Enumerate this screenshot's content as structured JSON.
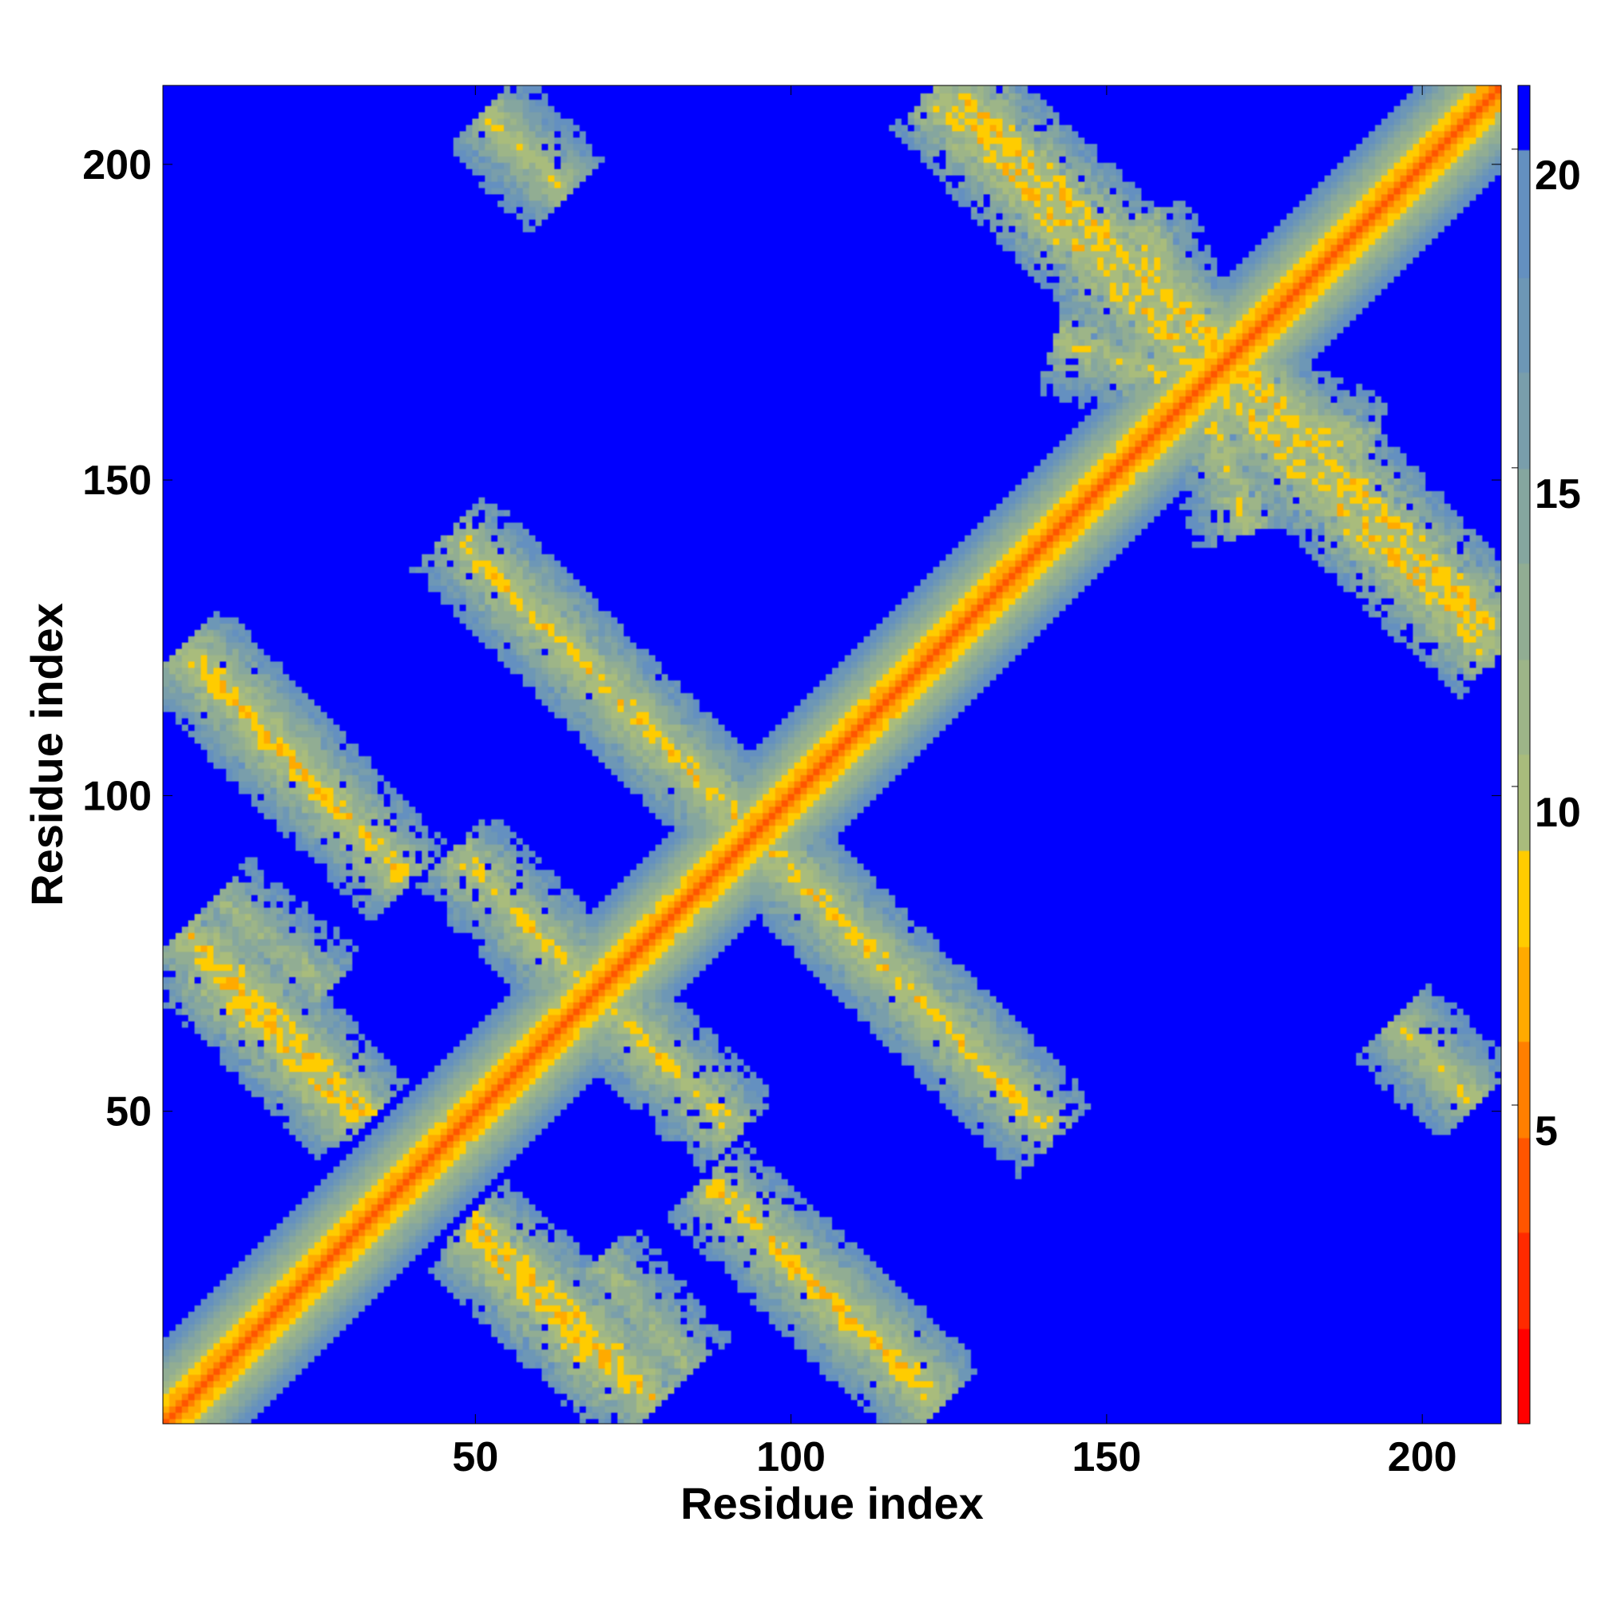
{
  "chart_data": {
    "type": "heatmap",
    "title": "",
    "xlabel": "Residue index",
    "ylabel": "Residue index",
    "n_residues": 212,
    "xlim": [
      1,
      212
    ],
    "ylim": [
      1,
      212
    ],
    "x_ticks": [
      50,
      100,
      150,
      200
    ],
    "y_ticks": [
      50,
      100,
      150,
      200
    ],
    "x_tick_labels": [
      "50",
      "100",
      "150",
      "200"
    ],
    "y_tick_labels": [
      "50",
      "100",
      "150",
      "200"
    ],
    "colorbar": {
      "range": [
        0,
        21
      ],
      "ticks": [
        5,
        10,
        15,
        20
      ],
      "tick_labels": [
        "5",
        "10",
        "15",
        "20"
      ],
      "background_value": 21,
      "colors": [
        {
          "max": 1.5,
          "color": "#ff0000"
        },
        {
          "max": 3.0,
          "color": "#ff2a00"
        },
        {
          "max": 4.5,
          "color": "#ff5500"
        },
        {
          "max": 6.0,
          "color": "#ff7f00"
        },
        {
          "max": 7.5,
          "color": "#ffaa00"
        },
        {
          "max": 9.0,
          "color": "#ffcc00"
        },
        {
          "max": 10.5,
          "color": "#a9bc7c"
        },
        {
          "max": 12.0,
          "color": "#9db588"
        },
        {
          "max": 13.5,
          "color": "#91ad93"
        },
        {
          "max": 15.0,
          "color": "#85a69f"
        },
        {
          "max": 16.5,
          "color": "#799eab"
        },
        {
          "max": 18.0,
          "color": "#6d97b6"
        },
        {
          "max": 20.0,
          "color": "#6490c0"
        },
        {
          "max": 99,
          "color": "#0000ff"
        }
      ]
    },
    "contact_bands": [
      {
        "i_start": 5,
        "i_end": 38,
        "j_start": 122,
        "j_end": 88,
        "d_min": 6.5
      },
      {
        "i_start": 5,
        "i_end": 32,
        "j_start": 78,
        "j_end": 50,
        "d_min": 6.0
      },
      {
        "i_start": 50,
        "i_end": 72,
        "j_start": 30,
        "j_end": 8,
        "d_min": 6.0
      },
      {
        "i_start": 52,
        "i_end": 90,
        "j_start": 136,
        "j_end": 98,
        "d_min": 7.0
      },
      {
        "i_start": 48,
        "i_end": 80,
        "j_start": 90,
        "j_end": 58,
        "d_min": 7.0
      },
      {
        "i_start": 96,
        "i_end": 140,
        "j_start": 92,
        "j_end": 48,
        "d_min": 7.0
      },
      {
        "i_start": 98,
        "i_end": 122,
        "j_start": 28,
        "j_end": 6,
        "d_min": 6.5
      },
      {
        "i_start": 128,
        "i_end": 175,
        "j_start": 210,
        "j_end": 164,
        "d_min": 6.0
      },
      {
        "i_start": 168,
        "i_end": 210,
        "j_start": 164,
        "j_end": 124,
        "d_min": 6.0
      },
      {
        "i_start": 144,
        "i_end": 190,
        "j_start": 172,
        "j_end": 156,
        "d_min": 7.5
      },
      {
        "i_start": 52,
        "i_end": 64,
        "j_start": 208,
        "j_end": 196,
        "d_min": 8.0
      },
      {
        "i_start": 196,
        "i_end": 208,
        "j_start": 64,
        "j_end": 52,
        "d_min": 8.0
      },
      {
        "i_start": 70,
        "i_end": 84,
        "j_start": 26,
        "j_end": 10,
        "d_min": 9.0
      }
    ]
  }
}
